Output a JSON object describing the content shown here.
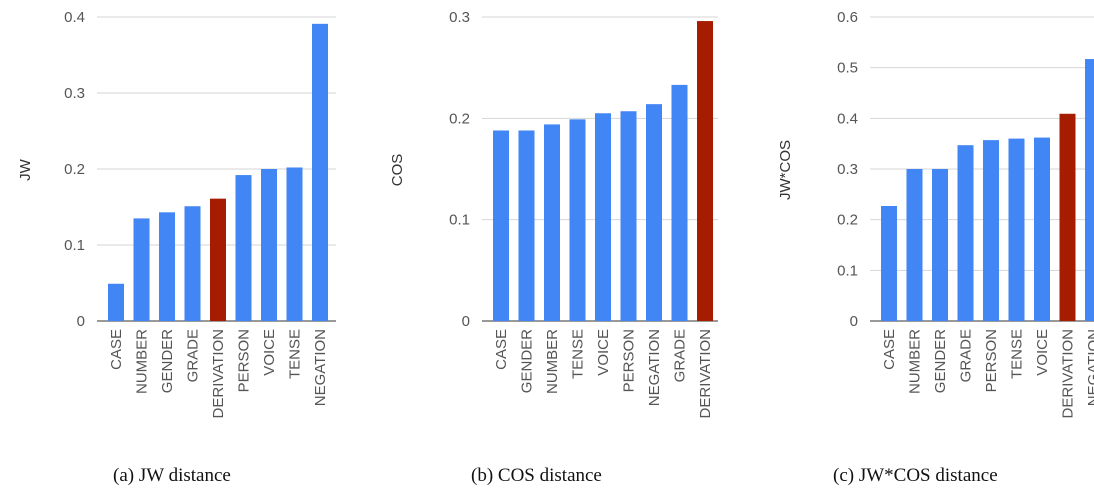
{
  "colors": {
    "default_bar": "#4285f4",
    "highlight_bar": "#a61c00",
    "grid": "#d6d6d6"
  },
  "chart_data": [
    {
      "type": "bar",
      "caption": "(a) JW distance",
      "ylabel": "JW",
      "ylim": [
        0,
        0.4
      ],
      "yticks": [
        0,
        0.1,
        0.2,
        0.3,
        0.4
      ],
      "ytick_labels": [
        "0",
        "0.1",
        "0.2",
        "0.3",
        "0.4"
      ],
      "categories": [
        "CASE",
        "NUMBER",
        "GENDER",
        "GRADE",
        "DERIVATION",
        "PERSON",
        "VOICE",
        "TENSE",
        "NEGATION"
      ],
      "values": [
        0.049,
        0.135,
        0.143,
        0.151,
        0.161,
        0.192,
        0.2,
        0.202,
        0.391
      ],
      "highlight": "DERIVATION",
      "grid": true
    },
    {
      "type": "bar",
      "caption": "(b) COS distance",
      "ylabel": "COS",
      "ylim": [
        0,
        0.3
      ],
      "yticks": [
        0,
        0.1,
        0.2,
        0.3
      ],
      "ytick_labels": [
        "0",
        "0.1",
        "0.2",
        "0.3"
      ],
      "categories": [
        "CASE",
        "GENDER",
        "NUMBER",
        "TENSE",
        "VOICE",
        "PERSON",
        "NEGATION",
        "GRADE",
        "DERIVATION"
      ],
      "values": [
        0.188,
        0.188,
        0.194,
        0.199,
        0.205,
        0.207,
        0.214,
        0.233,
        0.296
      ],
      "highlight": "DERIVATION",
      "grid": true
    },
    {
      "type": "bar",
      "caption": "(c) JW*COS distance",
      "ylabel": "JW*COS",
      "ylim": [
        0,
        0.6
      ],
      "yticks": [
        0,
        0.1,
        0.2,
        0.3,
        0.4,
        0.5,
        0.6
      ],
      "ytick_labels": [
        "0",
        "0.1",
        "0.2",
        "0.3",
        "0.4",
        "0.5",
        "0.6"
      ],
      "categories": [
        "CASE",
        "NUMBER",
        "GENDER",
        "GRADE",
        "PERSON",
        "TENSE",
        "VOICE",
        "DERIVATION",
        "NEGATION"
      ],
      "values": [
        0.227,
        0.3,
        0.3,
        0.347,
        0.357,
        0.36,
        0.362,
        0.409,
        0.517
      ],
      "highlight": "DERIVATION",
      "grid": true
    }
  ]
}
